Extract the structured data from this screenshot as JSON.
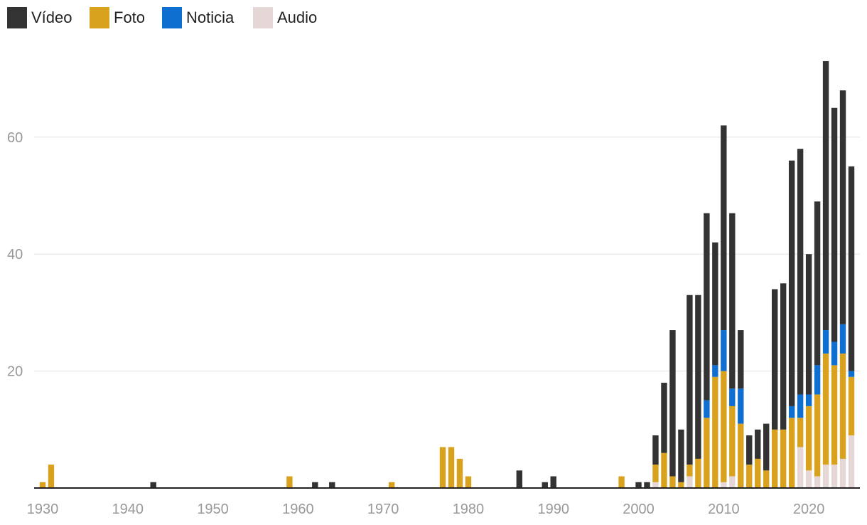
{
  "chart_data": {
    "type": "bar",
    "stacked": true,
    "title": "",
    "xlabel": "",
    "ylabel": "",
    "xlim": [
      1929,
      2026
    ],
    "ylim": [
      0,
      75
    ],
    "x_ticks": [
      1930,
      1940,
      1950,
      1960,
      1970,
      1980,
      1990,
      2000,
      2010,
      2020
    ],
    "y_ticks": [
      20,
      40,
      60
    ],
    "grid": true,
    "legend_placement": "top-left",
    "series": [
      {
        "name": "Audio",
        "color": "#e6d7d7",
        "points": [
          [
            2002,
            1
          ],
          [
            2006,
            2
          ],
          [
            2010,
            1
          ],
          [
            2011,
            2
          ],
          [
            2019,
            7
          ],
          [
            2020,
            3
          ],
          [
            2021,
            2
          ],
          [
            2022,
            4
          ],
          [
            2023,
            4
          ],
          [
            2024,
            5
          ],
          [
            2025,
            9
          ]
        ]
      },
      {
        "name": "Foto",
        "color": "#d9a21e",
        "points": [
          [
            1930,
            1
          ],
          [
            1931,
            4
          ],
          [
            1959,
            2
          ],
          [
            1971,
            1
          ],
          [
            1977,
            7
          ],
          [
            1978,
            7
          ],
          [
            1979,
            5
          ],
          [
            1980,
            2
          ],
          [
            1998,
            2
          ],
          [
            2002,
            3
          ],
          [
            2003,
            6
          ],
          [
            2004,
            2
          ],
          [
            2005,
            1
          ],
          [
            2006,
            2
          ],
          [
            2007,
            5
          ],
          [
            2008,
            12
          ],
          [
            2009,
            19
          ],
          [
            2010,
            19
          ],
          [
            2011,
            12
          ],
          [
            2012,
            11
          ],
          [
            2013,
            4
          ],
          [
            2014,
            5
          ],
          [
            2015,
            3
          ],
          [
            2016,
            10
          ],
          [
            2017,
            10
          ],
          [
            2018,
            12
          ],
          [
            2019,
            5
          ],
          [
            2020,
            11
          ],
          [
            2021,
            14
          ],
          [
            2022,
            19
          ],
          [
            2023,
            17
          ],
          [
            2024,
            18
          ],
          [
            2025,
            10
          ]
        ]
      },
      {
        "name": "Noticia",
        "color": "#0f6fd1",
        "points": [
          [
            2008,
            3
          ],
          [
            2009,
            2
          ],
          [
            2010,
            7
          ],
          [
            2011,
            3
          ],
          [
            2012,
            6
          ],
          [
            2018,
            2
          ],
          [
            2019,
            4
          ],
          [
            2020,
            2
          ],
          [
            2021,
            5
          ],
          [
            2022,
            4
          ],
          [
            2023,
            4
          ],
          [
            2024,
            5
          ],
          [
            2025,
            1
          ]
        ]
      },
      {
        "name": "Vídeo",
        "color": "#333333",
        "points": [
          [
            1943,
            1
          ],
          [
            1962,
            1
          ],
          [
            1964,
            1
          ],
          [
            1986,
            3
          ],
          [
            1989,
            1
          ],
          [
            1990,
            2
          ],
          [
            2000,
            1
          ],
          [
            2001,
            1
          ],
          [
            2002,
            5
          ],
          [
            2003,
            12
          ],
          [
            2004,
            25
          ],
          [
            2005,
            9
          ],
          [
            2006,
            29
          ],
          [
            2007,
            28
          ],
          [
            2008,
            32
          ],
          [
            2009,
            21
          ],
          [
            2010,
            35
          ],
          [
            2011,
            30
          ],
          [
            2012,
            10
          ],
          [
            2013,
            5
          ],
          [
            2014,
            5
          ],
          [
            2015,
            8
          ],
          [
            2016,
            24
          ],
          [
            2017,
            25
          ],
          [
            2018,
            42
          ],
          [
            2019,
            42
          ],
          [
            2020,
            24
          ],
          [
            2021,
            28
          ],
          [
            2022,
            46
          ],
          [
            2023,
            40
          ],
          [
            2024,
            40
          ],
          [
            2025,
            35
          ]
        ]
      }
    ],
    "legend": [
      {
        "name": "Vídeo",
        "color": "#333333"
      },
      {
        "name": "Foto",
        "color": "#d9a21e"
      },
      {
        "name": "Noticia",
        "color": "#0f6fd1"
      },
      {
        "name": "Audio",
        "color": "#e6d7d7"
      }
    ]
  }
}
